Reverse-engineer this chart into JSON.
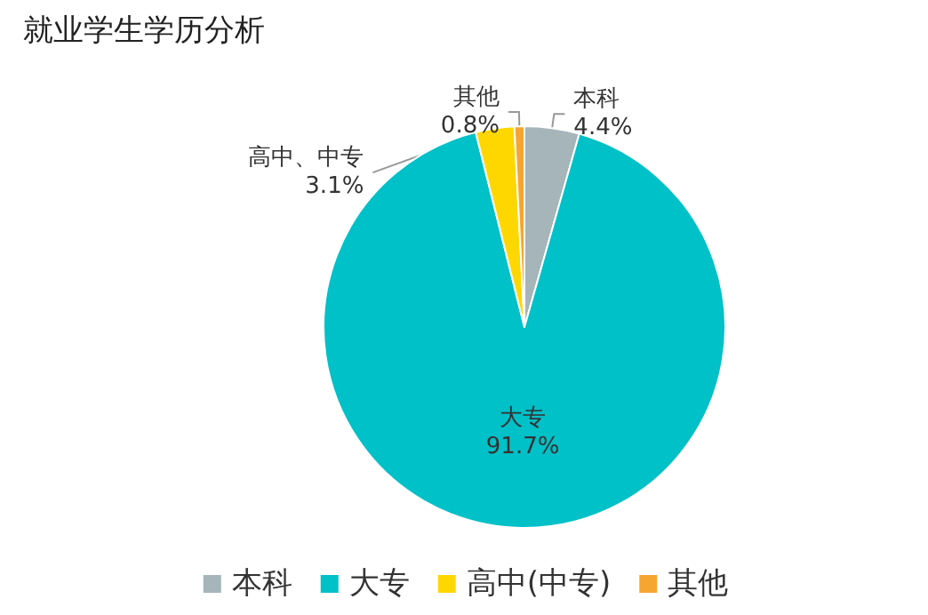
{
  "chart_data": {
    "type": "pie",
    "title": "就业学生学历分析",
    "categories": [
      "本科",
      "大专",
      "高中(中专)",
      "其他"
    ],
    "values": [
      4.4,
      91.7,
      3.1,
      0.8
    ],
    "value_labels": [
      "4.4%",
      "91.7%",
      "3.1%",
      "0.8%"
    ],
    "annotations": [
      "本科",
      "大专",
      "高中、中专",
      "其他"
    ],
    "colors": [
      "#a5b5b9",
      "#00c0c8",
      "#ffd700",
      "#f7a531"
    ],
    "legend": "bottom"
  }
}
